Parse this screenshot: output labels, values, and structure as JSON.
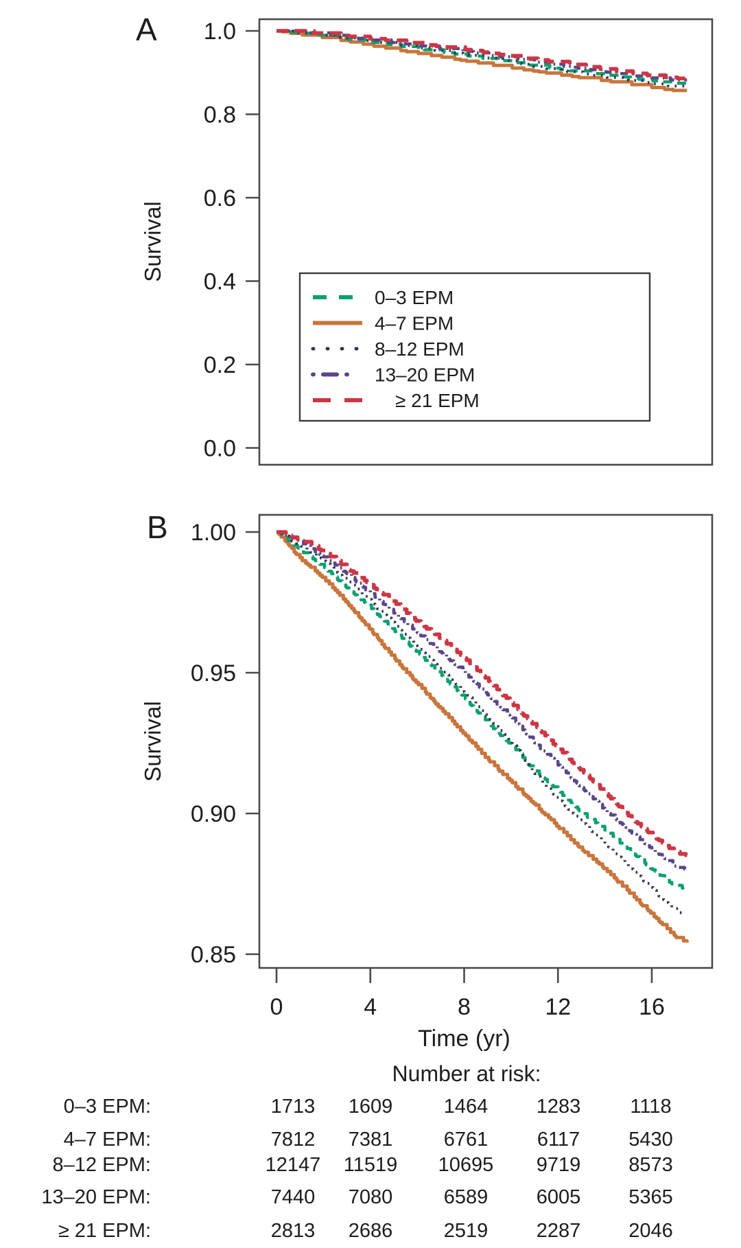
{
  "figure": {
    "panels": [
      {
        "label": "A",
        "y_axis_label": "Survival",
        "y_tick_labels": [
          "1.0",
          "0.8",
          "0.6",
          "0.4",
          "0.2",
          "0.0"
        ]
      },
      {
        "label": "B",
        "y_axis_label": "Survival",
        "y_tick_labels": [
          "1.00",
          "0.95",
          "0.90",
          "0.85"
        ],
        "x_tick_labels": [
          "0",
          "4",
          "8",
          "12",
          "16"
        ],
        "x_axis_label": "Time (yr)"
      }
    ],
    "legend": {
      "entries": [
        {
          "label": "0–3 EPM",
          "color": "#0ba06c",
          "line_style": "dashed"
        },
        {
          "label": "4–7 EPM",
          "color": "#c8763c",
          "line_style": "solid"
        },
        {
          "label": "8–12 EPM",
          "color": "#2e3657",
          "line_style": "dotted"
        },
        {
          "label": "13–20 EPM",
          "color": "#5a4687",
          "line_style": "dash-dot"
        },
        {
          "label": "≥ 21 EPM",
          "color": "#cc3644",
          "line_style": "long-dash"
        }
      ]
    }
  },
  "chart_data": [
    {
      "type": "line",
      "subtype": "kaplan-meier",
      "panel": "A",
      "title": "",
      "xlabel": "",
      "ylabel": "Survival",
      "ylim": [
        0.0,
        1.0
      ],
      "xlim": [
        0,
        17.5
      ],
      "yticks": [
        1.0,
        0.8,
        0.6,
        0.4,
        0.2,
        0.0
      ],
      "grid": false,
      "legend_position": "inside lower-center",
      "x": [
        0,
        1,
        2,
        3,
        4,
        5,
        6,
        7,
        8,
        9,
        10,
        11,
        12,
        13,
        14,
        15,
        16,
        17,
        17.5
      ],
      "series": [
        {
          "name": "0–3 EPM",
          "color": "#0ba06c",
          "line_style": "dashed",
          "values": [
            1.0,
            0.9935,
            0.9875,
            0.98,
            0.973,
            0.965,
            0.957,
            0.949,
            0.941,
            0.932,
            0.924,
            0.915,
            0.908,
            0.9,
            0.894,
            0.887,
            0.88,
            0.874,
            0.873
          ]
        },
        {
          "name": "4–7 EPM",
          "color": "#c8763c",
          "line_style": "solid",
          "values": [
            1.0,
            0.9905,
            0.9835,
            0.9745,
            0.965,
            0.955,
            0.946,
            0.937,
            0.928,
            0.919,
            0.911,
            0.903,
            0.895,
            0.887,
            0.88,
            0.872,
            0.864,
            0.856,
            0.854
          ]
        },
        {
          "name": "8–12 EPM",
          "color": "#2e3657",
          "line_style": "dotted",
          "values": [
            1.0,
            0.995,
            0.99,
            0.9825,
            0.975,
            0.967,
            0.959,
            0.951,
            0.943,
            0.934,
            0.925,
            0.914,
            0.905,
            0.897,
            0.889,
            0.881,
            0.873,
            0.865,
            0.864
          ]
        },
        {
          "name": "13–20 EPM",
          "color": "#5a4687",
          "line_style": "dash-dot",
          "values": [
            1.0,
            0.9965,
            0.991,
            0.985,
            0.978,
            0.971,
            0.964,
            0.957,
            0.95,
            0.942,
            0.934,
            0.925,
            0.917,
            0.909,
            0.901,
            0.894,
            0.887,
            0.881,
            0.88
          ]
        },
        {
          "name": "≥ 21 EPM",
          "color": "#cc3644",
          "line_style": "long-dash",
          "values": [
            1.0,
            0.997,
            0.993,
            0.987,
            0.981,
            0.975,
            0.968,
            0.962,
            0.955,
            0.947,
            0.939,
            0.931,
            0.923,
            0.915,
            0.907,
            0.899,
            0.892,
            0.886,
            0.885
          ]
        }
      ]
    },
    {
      "type": "line",
      "subtype": "kaplan-meier",
      "panel": "B",
      "title": "",
      "xlabel": "Time (yr)",
      "ylabel": "Survival",
      "ylim": [
        0.85,
        1.0
      ],
      "xlim": [
        0,
        17.5
      ],
      "yticks": [
        1.0,
        0.95,
        0.9,
        0.85
      ],
      "xticks": [
        0,
        4,
        8,
        12,
        16
      ],
      "grid": false,
      "x": [
        0,
        1,
        2,
        3,
        4,
        5,
        6,
        7,
        8,
        9,
        10,
        11,
        12,
        13,
        14,
        15,
        16,
        17,
        17.5
      ],
      "series": [
        {
          "name": "0–3 EPM",
          "color": "#0ba06c",
          "line_style": "dashed",
          "values": [
            1.0,
            0.9935,
            0.9875,
            0.98,
            0.973,
            0.965,
            0.957,
            0.949,
            0.941,
            0.932,
            0.924,
            0.915,
            0.908,
            0.9,
            0.894,
            0.887,
            0.88,
            0.874,
            0.873
          ]
        },
        {
          "name": "4–7 EPM",
          "color": "#c8763c",
          "line_style": "solid",
          "values": [
            1.0,
            0.9905,
            0.9835,
            0.9745,
            0.965,
            0.955,
            0.946,
            0.937,
            0.928,
            0.919,
            0.911,
            0.903,
            0.895,
            0.887,
            0.88,
            0.872,
            0.864,
            0.856,
            0.854
          ]
        },
        {
          "name": "8–12 EPM",
          "color": "#2e3657",
          "line_style": "dotted",
          "values": [
            1.0,
            0.995,
            0.99,
            0.9825,
            0.975,
            0.967,
            0.959,
            0.951,
            0.943,
            0.934,
            0.925,
            0.914,
            0.905,
            0.897,
            0.889,
            0.881,
            0.873,
            0.865,
            0.864
          ]
        },
        {
          "name": "13–20 EPM",
          "color": "#5a4687",
          "line_style": "dash-dot",
          "values": [
            1.0,
            0.9965,
            0.991,
            0.985,
            0.978,
            0.971,
            0.964,
            0.957,
            0.95,
            0.942,
            0.934,
            0.925,
            0.917,
            0.909,
            0.901,
            0.894,
            0.887,
            0.881,
            0.88
          ]
        },
        {
          "name": "≥ 21 EPM",
          "color": "#cc3644",
          "line_style": "long-dash",
          "values": [
            1.0,
            0.997,
            0.993,
            0.987,
            0.981,
            0.975,
            0.968,
            0.962,
            0.955,
            0.947,
            0.939,
            0.931,
            0.923,
            0.915,
            0.907,
            0.899,
            0.892,
            0.886,
            0.885
          ]
        }
      ]
    }
  ],
  "risk_table": {
    "title": "Number at risk:",
    "time_points": [
      0,
      4,
      8,
      12,
      16
    ],
    "rows": [
      {
        "label": "0–3 EPM:",
        "values": [
          "1713",
          "1609",
          "1464",
          "1283",
          "1118"
        ]
      },
      {
        "label": "4–7 EPM:",
        "values": [
          "7812",
          "7381",
          "6761",
          "6117",
          "5430"
        ]
      },
      {
        "label": "8–12 EPM:",
        "values": [
          "12147",
          "11519",
          "10695",
          "9719",
          "8573"
        ]
      },
      {
        "label": "13–20 EPM:",
        "values": [
          "7440",
          "7080",
          "6589",
          "6005",
          "5365"
        ]
      },
      {
        "label": "≥ 21 EPM:",
        "values": [
          "2813",
          "2686",
          "2519",
          "2287",
          "2046"
        ]
      }
    ]
  }
}
